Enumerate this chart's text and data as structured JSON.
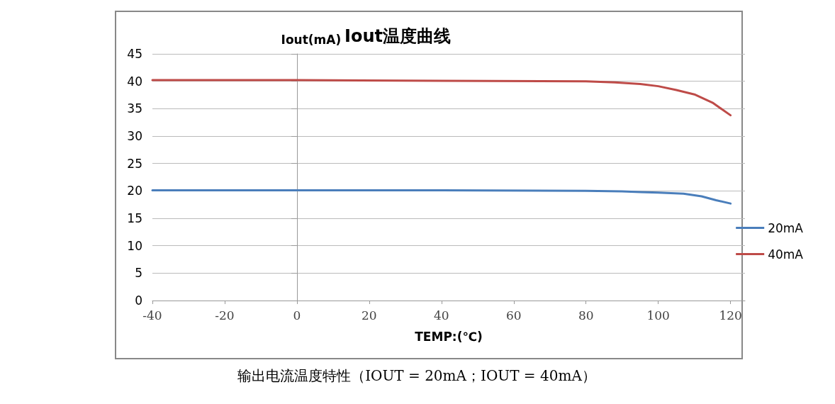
{
  "chart_data": {
    "type": "line",
    "title": "Iout温度曲线",
    "xlabel": "TEMP:(℃)",
    "ylabel": "Iout(mA)",
    "annotations": [
      "输出电流温度特性（IOUT = 20mA；IOUT = 40mA）"
    ],
    "xlim": [
      -40,
      124
    ],
    "xticks": [
      -40,
      -20,
      0,
      20,
      40,
      60,
      80,
      100,
      120
    ],
    "ylim": [
      0,
      45
    ],
    "yticks": [
      0,
      5,
      10,
      15,
      20,
      25,
      30,
      35,
      40,
      45
    ],
    "grid": "y",
    "legend": "right",
    "marker": "none",
    "line_style": "solid",
    "series": [
      {
        "name": "20mA",
        "color": "#4a7ebb",
        "x": [
          -40,
          0,
          40,
          80,
          90,
          95,
          100,
          107,
          112,
          116,
          120
        ],
        "values": [
          20.1,
          20.1,
          20.1,
          20.0,
          19.9,
          19.8,
          19.7,
          19.5,
          19.0,
          18.3,
          17.7
        ]
      },
      {
        "name": "40mA",
        "color": "#be4b48",
        "x": [
          -40,
          0,
          40,
          80,
          88,
          95,
          100,
          105,
          110,
          115,
          120
        ],
        "values": [
          40.2,
          40.2,
          40.1,
          40.0,
          39.8,
          39.5,
          39.1,
          38.4,
          37.6,
          36.1,
          33.8
        ]
      }
    ]
  }
}
